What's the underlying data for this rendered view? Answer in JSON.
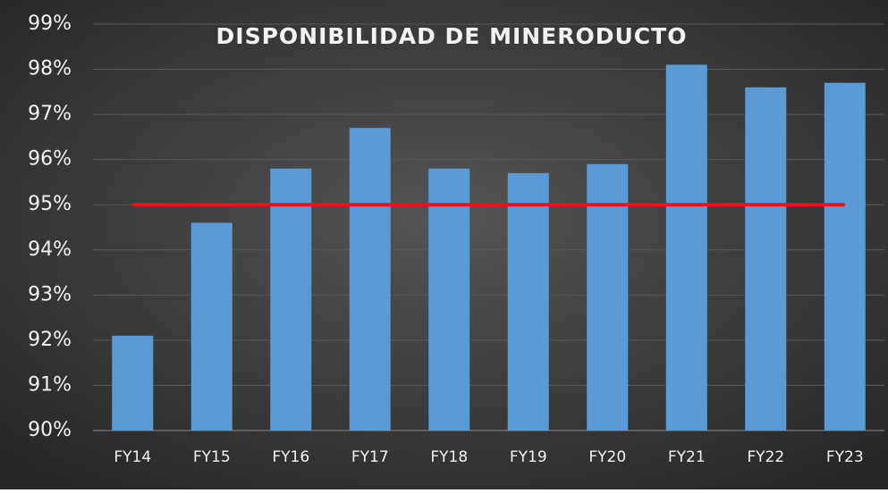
{
  "chart_data": {
    "type": "bar",
    "title": "DISPONIBILIDAD DE MINERODUCTO",
    "categories": [
      "FY14",
      "FY15",
      "FY16",
      "FY17",
      "FY18",
      "FY19",
      "FY20",
      "FY21",
      "FY22",
      "FY23"
    ],
    "series": [
      {
        "type": "bar",
        "color": "#5b9bd5",
        "values": [
          92.1,
          94.6,
          95.8,
          96.7,
          95.8,
          95.7,
          95.9,
          98.1,
          97.6,
          97.7
        ]
      },
      {
        "type": "line",
        "color": "#e8141b",
        "values": [
          95,
          95,
          95,
          95,
          95,
          95,
          95,
          95,
          95,
          95
        ]
      }
    ],
    "ylim": [
      90,
      99
    ],
    "yticks": [
      {
        "value": 90,
        "label": "90%"
      },
      {
        "value": 91,
        "label": "91%"
      },
      {
        "value": 92,
        "label": "92%"
      },
      {
        "value": 93,
        "label": "93%"
      },
      {
        "value": 94,
        "label": "94%"
      },
      {
        "value": 95,
        "label": "95%"
      },
      {
        "value": 96,
        "label": "96%"
      },
      {
        "value": 97,
        "label": "97%"
      },
      {
        "value": 98,
        "label": "98%"
      },
      {
        "value": 99,
        "label": "99%"
      }
    ],
    "grid": true
  }
}
